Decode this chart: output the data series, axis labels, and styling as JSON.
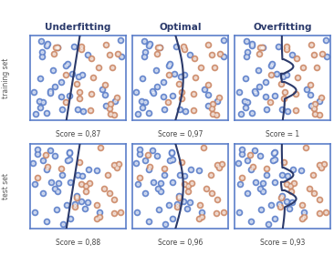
{
  "title_underfitting": "Underfitting",
  "title_optimal": "Optimal",
  "title_overfitting": "Overfitting",
  "row_label_train": "training set",
  "row_label_test": "test set",
  "scores": {
    "train_under": "Score = 0,87",
    "train_opt": "Score = 0,97",
    "train_over": "Score = 1",
    "test_under": "Score = 0,88",
    "test_opt": "Score = 0,96",
    "test_over": "Score = 0,93"
  },
  "blue_color": "#5b7ec9",
  "orange_color": "#cc8866",
  "line_color": "#2b3a6b",
  "box_edge_color": "#5b7ec9",
  "title_color": "#2b3a6b",
  "score_color": "#444444",
  "background": "#ffffff",
  "seed_train": 42,
  "seed_test": 99,
  "n_blue": 36,
  "n_orange": 25
}
